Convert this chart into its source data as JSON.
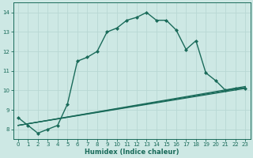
{
  "title": "",
  "xlabel": "Humidex (Indice chaleur)",
  "bg_color": "#cde8e4",
  "grid_color": "#b8d8d4",
  "line_color": "#1a6b5a",
  "xlim": [
    -0.5,
    23.5
  ],
  "ylim": [
    7.5,
    14.5
  ],
  "xticks": [
    0,
    1,
    2,
    3,
    4,
    5,
    6,
    7,
    8,
    9,
    10,
    11,
    12,
    13,
    14,
    15,
    16,
    17,
    18,
    19,
    20,
    21,
    22,
    23
  ],
  "yticks": [
    8,
    9,
    10,
    11,
    12,
    13,
    14
  ],
  "lines": [
    {
      "x": [
        0,
        1,
        2,
        3,
        4,
        5,
        6,
        7,
        8,
        9,
        10,
        11,
        12,
        13,
        14,
        15,
        16,
        17,
        18,
        19,
        20,
        21,
        22,
        23
      ],
      "y": [
        8.6,
        8.2,
        7.8,
        8.0,
        8.2,
        9.3,
        11.5,
        11.7,
        12.0,
        13.0,
        13.2,
        13.6,
        13.75,
        14.0,
        13.6,
        13.6,
        13.1,
        12.1,
        12.55,
        10.9,
        10.5,
        10.0,
        10.1,
        10.1
      ],
      "marker": "D",
      "markersize": 2.0,
      "linewidth": 1.0,
      "linestyle": "-"
    },
    {
      "x": [
        0,
        23
      ],
      "y": [
        8.2,
        10.1
      ],
      "marker": null,
      "linewidth": 0.9,
      "linestyle": "-"
    },
    {
      "x": [
        0,
        23
      ],
      "y": [
        8.2,
        10.15
      ],
      "marker": null,
      "linewidth": 0.9,
      "linestyle": "-"
    },
    {
      "x": [
        0,
        23
      ],
      "y": [
        8.2,
        10.2
      ],
      "marker": null,
      "linewidth": 0.9,
      "linestyle": "-"
    }
  ]
}
